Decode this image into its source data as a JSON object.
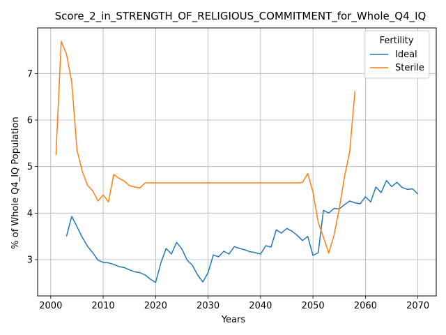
{
  "chart_data": {
    "type": "line",
    "title": "Score_2_in_STRENGTH_OF_RELIGIOUS_COMMITMENT_for_Whole_Q4_IQ",
    "xlabel": "Years",
    "ylabel": "% of Whole Q4_IQ Population",
    "xlim": [
      1997.5,
      2073.5
    ],
    "ylim": [
      2.22,
      7.98
    ],
    "xticks": [
      2000,
      2010,
      2020,
      2030,
      2040,
      2050,
      2060,
      2070
    ],
    "yticks": [
      3,
      4,
      5,
      6,
      7
    ],
    "grid": true,
    "legend": {
      "title": "Fertility",
      "position": "top-right"
    },
    "series": [
      {
        "name": "Ideal",
        "color": "#1f77b4",
        "x": [
          2003,
          2004,
          2005,
          2006,
          2007,
          2008,
          2009,
          2010,
          2011,
          2012,
          2013,
          2014,
          2015,
          2016,
          2017,
          2018,
          2019,
          2020,
          2021,
          2022,
          2023,
          2024,
          2025,
          2026,
          2027,
          2028,
          2029,
          2030,
          2031,
          2032,
          2033,
          2034,
          2035,
          2036,
          2037,
          2038,
          2039,
          2040,
          2041,
          2042,
          2043,
          2044,
          2045,
          2046,
          2047,
          2048,
          2049,
          2050,
          2051,
          2052,
          2053,
          2054,
          2055,
          2056,
          2057,
          2058,
          2059,
          2060,
          2061,
          2062,
          2063,
          2064,
          2065,
          2066,
          2067,
          2068,
          2069,
          2070
        ],
        "values": [
          3.5,
          3.93,
          3.71,
          3.48,
          3.29,
          3.15,
          2.99,
          2.94,
          2.93,
          2.9,
          2.85,
          2.83,
          2.78,
          2.74,
          2.72,
          2.67,
          2.58,
          2.51,
          2.93,
          3.24,
          3.12,
          3.37,
          3.23,
          2.99,
          2.88,
          2.67,
          2.52,
          2.72,
          3.1,
          3.06,
          3.18,
          3.12,
          3.28,
          3.24,
          3.21,
          3.17,
          3.15,
          3.12,
          3.3,
          3.27,
          3.64,
          3.57,
          3.67,
          3.61,
          3.52,
          3.41,
          3.5,
          3.09,
          3.15,
          4.06,
          4.0,
          4.1,
          4.09,
          4.18,
          4.26,
          4.22,
          4.2,
          4.35,
          4.24,
          4.56,
          4.44,
          4.7,
          4.57,
          4.66,
          4.55,
          4.51,
          4.52,
          4.41
        ]
      },
      {
        "name": "Sterile",
        "color": "#ff7f0e",
        "x": [
          2001,
          2002,
          2003,
          2004,
          2005,
          2006,
          2007,
          2008,
          2009,
          2010,
          2011,
          2012,
          2013,
          2014,
          2015,
          2016,
          2017,
          2018,
          2019,
          2020,
          2021,
          2022,
          2023,
          2024,
          2025,
          2026,
          2027,
          2028,
          2029,
          2030,
          2031,
          2032,
          2033,
          2034,
          2035,
          2036,
          2037,
          2038,
          2039,
          2040,
          2041,
          2042,
          2043,
          2044,
          2045,
          2046,
          2047,
          2048,
          2049,
          2050,
          2051,
          2052,
          2053,
          2054,
          2055,
          2056,
          2057,
          2058
        ],
        "values": [
          5.25,
          7.69,
          7.42,
          6.82,
          5.36,
          4.9,
          4.6,
          4.48,
          4.26,
          4.39,
          4.24,
          4.83,
          4.75,
          4.69,
          4.59,
          4.56,
          4.54,
          4.65,
          4.65,
          4.65,
          4.65,
          4.65,
          4.65,
          4.65,
          4.65,
          4.65,
          4.65,
          4.65,
          4.65,
          4.65,
          4.65,
          4.65,
          4.65,
          4.65,
          4.65,
          4.65,
          4.65,
          4.65,
          4.65,
          4.65,
          4.65,
          4.65,
          4.65,
          4.65,
          4.65,
          4.65,
          4.65,
          4.66,
          4.85,
          4.45,
          3.8,
          3.48,
          3.14,
          3.52,
          4.09,
          4.78,
          5.32,
          6.62
        ]
      }
    ]
  }
}
